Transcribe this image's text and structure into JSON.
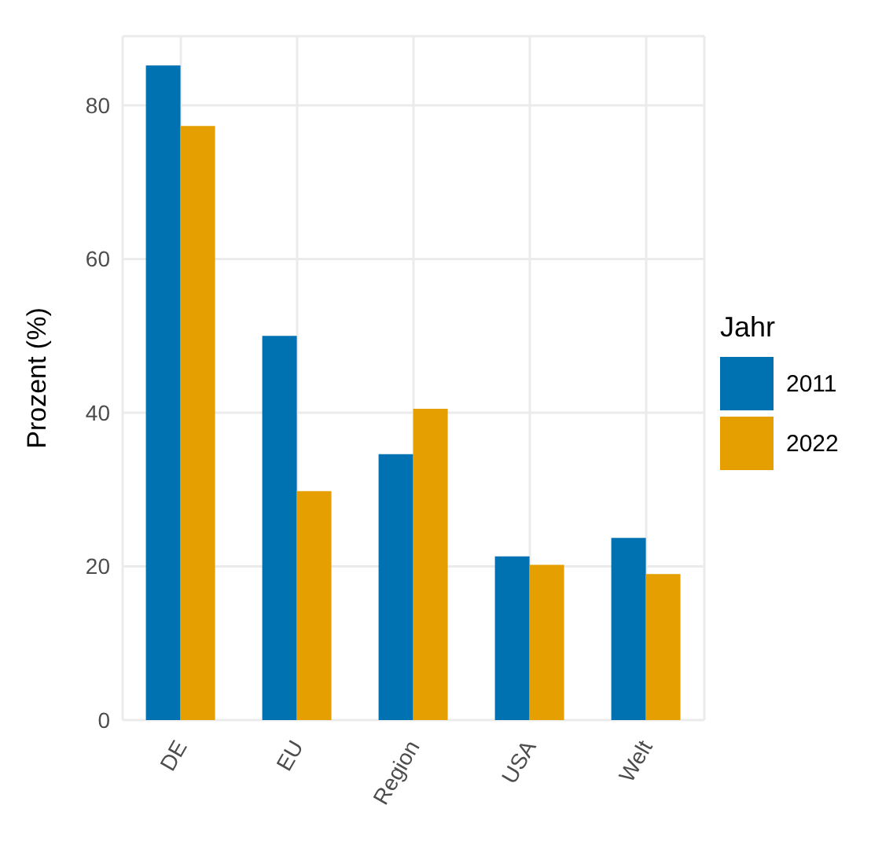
{
  "chart_data": {
    "type": "bar",
    "ylabel": "Prozent (%)",
    "legend_title": "Jahr",
    "categories": [
      "DE",
      "EU",
      "Region",
      "USA",
      "Welt"
    ],
    "series": [
      {
        "name": "2011",
        "color": "#0072b2",
        "values": [
          85.2,
          50.0,
          34.6,
          21.3,
          23.7
        ]
      },
      {
        "name": "2022",
        "color": "#e69f00",
        "values": [
          77.3,
          29.8,
          40.5,
          20.2,
          19.0
        ]
      }
    ],
    "ylim": [
      0,
      89
    ],
    "yticks": [
      0,
      20,
      40,
      60,
      80
    ],
    "grid": true,
    "legend": "right"
  }
}
